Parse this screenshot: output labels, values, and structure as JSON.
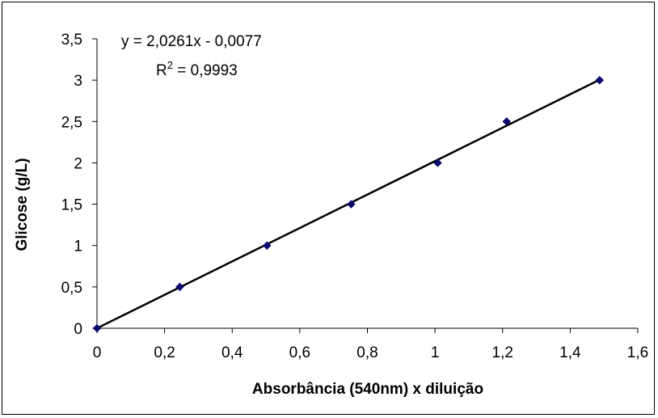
{
  "chart_data": {
    "type": "scatter",
    "xlabel": "Absorbância (540nm) x diluição",
    "ylabel": "Glicose (g/L)",
    "xlim": [
      0,
      1.6
    ],
    "ylim": [
      0,
      3.5
    ],
    "x_ticks": [
      "0",
      "0,2",
      "0,4",
      "0,6",
      "0,8",
      "1",
      "1,2",
      "1,4",
      "1,6"
    ],
    "y_ticks": [
      "0",
      "0,5",
      "1",
      "1,5",
      "2",
      "2,5",
      "3",
      "3,5"
    ],
    "grid": false,
    "legend": "none",
    "series": [
      {
        "x": [
          0,
          0.245,
          0.503,
          0.752,
          1.008,
          1.212,
          1.487
        ],
        "y": [
          0,
          0.5,
          1.0,
          1.5,
          2.0,
          2.5,
          3.0
        ]
      }
    ],
    "trendline": {
      "slope": 2.0261,
      "intercept": -0.0077,
      "x_range": [
        0,
        1.487
      ],
      "equation": "y = 2,0261x - 0,0077",
      "r2_prefix": "R",
      "r2_sup": "2",
      "r2_value": " = 0,9993"
    },
    "colors": {
      "marker": "#0a0a6e",
      "line": "#000000"
    }
  }
}
